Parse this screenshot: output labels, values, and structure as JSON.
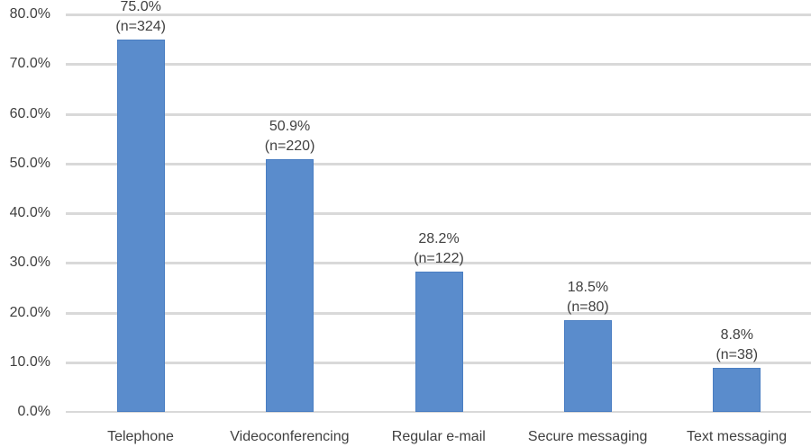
{
  "chart_data": {
    "type": "bar",
    "title": "",
    "xlabel": "",
    "ylabel": "",
    "ylim": [
      0,
      80
    ],
    "yticks": [
      "0.0%",
      "10.0%",
      "20.0%",
      "30.0%",
      "40.0%",
      "50.0%",
      "60.0%",
      "70.0%",
      "80.0%"
    ],
    "grid": true,
    "legend": "none",
    "categories": [
      "Telephone",
      "Videoconferencing",
      "Regular e-mail",
      "Secure messaging",
      "Text messaging"
    ],
    "values": [
      75.0,
      50.9,
      28.2,
      18.5,
      8.8
    ],
    "counts": [
      324,
      220,
      122,
      80,
      38
    ],
    "data_labels": [
      {
        "pct": "75.0%",
        "n": "(n=324)"
      },
      {
        "pct": "50.9%",
        "n": "(n=220)"
      },
      {
        "pct": "28.2%",
        "n": "(n=122)"
      },
      {
        "pct": "18.5%",
        "n": "(n=80)"
      },
      {
        "pct": "8.8%",
        "n": "(n=38)"
      }
    ],
    "bar_color": "#5a8ccc",
    "grid_color": "#d9d9d9"
  }
}
